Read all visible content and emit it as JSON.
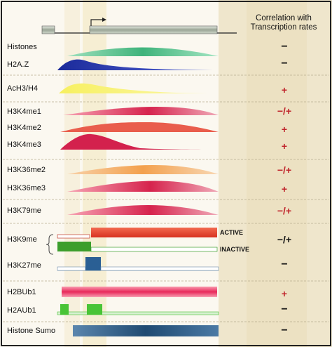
{
  "header": {
    "correlation_title_line1": "Correlation with",
    "correlation_title_line2": "Transcription rates"
  },
  "rows": [
    {
      "label": "Histones",
      "correlation": "−"
    },
    {
      "label": "H2A.Z",
      "correlation": "−"
    },
    {
      "label": "AcH3/H4",
      "correlation": "+"
    },
    {
      "label": "H3K4me1",
      "correlation": "−/+"
    },
    {
      "label": "H3K4me2",
      "correlation": "+"
    },
    {
      "label": "H3K4me3",
      "correlation": "+"
    },
    {
      "label": "H3K36me2",
      "correlation": "−/+"
    },
    {
      "label": "H3K36me3",
      "correlation": "+"
    },
    {
      "label": "H3K79me",
      "correlation": "−/+"
    },
    {
      "label": "H3K9me",
      "correlation": "−/+"
    },
    {
      "label": "H3K27me",
      "correlation": "−"
    },
    {
      "label": "H2BUb1",
      "correlation": "+"
    },
    {
      "label": "H2AUb1",
      "correlation": "−"
    },
    {
      "label": "Histone Sumo",
      "correlation": "−"
    }
  ],
  "h3k9_states": {
    "active": "ACTIVE",
    "inactive": "INACTIVE"
  },
  "colors": {
    "histones": "#58c08c",
    "h2az": "#1f2fa0",
    "ac": "#f2e829",
    "me_red": "#d8284f",
    "k36me2": "#f2a95a",
    "k9_active": "#e8402b",
    "k9_inactive": "#3c9e2c",
    "k27": "#2a5f94",
    "h2bub": "#e8285a",
    "h2aub": "#49c436",
    "sumo": "#2c5680",
    "positive": "#c0242b"
  }
}
